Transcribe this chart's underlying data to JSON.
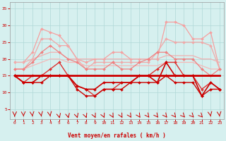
{
  "xlabel": "Vent moyen/en rafales ( km/h )",
  "xlim": [
    -0.5,
    23.5
  ],
  "ylim": [
    2,
    37
  ],
  "yticks": [
    5,
    10,
    15,
    20,
    25,
    30,
    35
  ],
  "xticks": [
    0,
    1,
    2,
    3,
    4,
    5,
    6,
    7,
    8,
    9,
    10,
    11,
    12,
    13,
    14,
    15,
    16,
    17,
    18,
    19,
    20,
    21,
    22,
    23
  ],
  "background_color": "#d6f0ef",
  "grid_color": "#b0d8d8",
  "lines": [
    {
      "y": [
        19,
        19,
        22,
        29,
        28,
        27,
        24,
        20,
        19,
        20,
        20,
        22,
        22,
        20,
        20,
        20,
        20,
        31,
        31,
        30,
        26,
        26,
        28,
        17
      ],
      "color": "#f5a0a0",
      "lw": 0.9,
      "marker": "D",
      "ms": 2.0,
      "zorder": 2
    },
    {
      "y": [
        17,
        17,
        20,
        26,
        26,
        24,
        24,
        20,
        17,
        19,
        19,
        19,
        19,
        19,
        19,
        19,
        22,
        26,
        25,
        25,
        25,
        25,
        24,
        17
      ],
      "color": "#f0a8a8",
      "lw": 0.9,
      "marker": "D",
      "ms": 2.0,
      "zorder": 2
    },
    {
      "y": [
        17,
        17,
        19,
        22,
        24,
        22,
        20,
        19,
        17,
        17,
        17,
        19,
        17,
        17,
        19,
        20,
        22,
        22,
        20,
        20,
        20,
        17,
        15,
        17
      ],
      "color": "#f08080",
      "lw": 0.9,
      "marker": "D",
      "ms": 2.0,
      "zorder": 3
    },
    {
      "y": [
        19,
        19,
        20,
        21,
        22,
        22,
        20,
        20,
        20,
        20,
        20,
        20,
        20,
        20,
        20,
        20,
        20,
        21,
        21,
        21,
        21,
        20,
        20,
        19
      ],
      "color": "#f0b0b0",
      "lw": 0.9,
      "marker": null,
      "ms": 0,
      "zorder": 2
    },
    {
      "y": [
        17,
        17,
        18,
        19,
        20,
        20,
        19,
        19,
        18,
        18,
        18,
        18,
        18,
        18,
        18,
        18,
        18,
        19,
        19,
        19,
        19,
        18,
        17,
        17
      ],
      "color": "#f5b8b8",
      "lw": 0.9,
      "marker": null,
      "ms": 0,
      "zorder": 2
    },
    {
      "y": [
        15,
        13,
        13,
        15,
        15,
        15,
        15,
        12,
        11,
        11,
        13,
        13,
        13,
        13,
        15,
        15,
        13,
        19,
        15,
        15,
        15,
        9,
        13,
        11
      ],
      "color": "#cc0000",
      "lw": 1.2,
      "marker": "D",
      "ms": 2.0,
      "zorder": 5
    },
    {
      "y": [
        15,
        15,
        15,
        15,
        15,
        15,
        15,
        15,
        15,
        15,
        15,
        15,
        15,
        15,
        15,
        15,
        15,
        15,
        15,
        15,
        15,
        15,
        15,
        15
      ],
      "color": "#cc0000",
      "lw": 2.0,
      "marker": null,
      "ms": 0,
      "zorder": 6
    },
    {
      "y": [
        15,
        13,
        13,
        13,
        15,
        15,
        15,
        11,
        9,
        9,
        11,
        11,
        11,
        13,
        13,
        13,
        13,
        15,
        13,
        13,
        13,
        9,
        11,
        11
      ],
      "color": "#cc0000",
      "lw": 1.0,
      "marker": "D",
      "ms": 2.0,
      "zorder": 5
    },
    {
      "y": [
        15,
        13,
        15,
        15,
        17,
        19,
        15,
        12,
        11,
        9,
        11,
        11,
        13,
        13,
        15,
        15,
        17,
        19,
        19,
        15,
        15,
        11,
        13,
        11
      ],
      "color": "#dd3333",
      "lw": 1.0,
      "marker": "D",
      "ms": 2.0,
      "zorder": 4
    }
  ],
  "arrow_angles": [
    0,
    5,
    10,
    15,
    15,
    20,
    20,
    25,
    30,
    35,
    35,
    40,
    40,
    45,
    45,
    50,
    50,
    50,
    50,
    55,
    55,
    55,
    15,
    10
  ]
}
